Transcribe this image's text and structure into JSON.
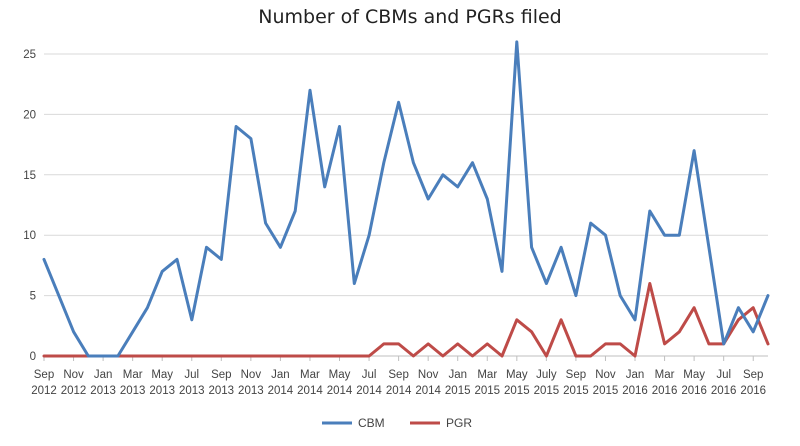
{
  "chart_data": {
    "type": "line",
    "title": "Number of CBMs and PGRs filed",
    "xlabel": "",
    "ylabel": "",
    "ylim": [
      0,
      25
    ],
    "yticks": [
      "0",
      "5",
      "10",
      "15",
      "20",
      "25"
    ],
    "grid": true,
    "legend_position": "bottom",
    "x": [
      "Sep 2012",
      "Oct 2012",
      "Nov 2012",
      "Dec 2012",
      "Jan 2013",
      "Feb 2013",
      "Mar 2013",
      "Apr 2013",
      "May 2013",
      "Jun 2013",
      "Jul 2013",
      "Aug 2013",
      "Sep 2013",
      "Oct 2013",
      "Nov 2013",
      "Dec 2013",
      "Jan 2014",
      "Feb 2014",
      "Mar 2014",
      "Apr 2014",
      "May 2014",
      "Jun 2014",
      "Jul 2014",
      "Aug 2014",
      "Sep 2014",
      "Oct 2014",
      "Nov 2014",
      "Dec 2014",
      "Jan 2015",
      "Feb 2015",
      "Mar 2015",
      "Apr 2015",
      "May 2015",
      "Jun 2015",
      "Jul 2015",
      "Aug 2015",
      "Sep 2015",
      "Oct 2015",
      "Nov 2015",
      "Dec 2015",
      "Jan 2016",
      "Feb 2016",
      "Mar 2016",
      "Apr 2016",
      "May 2016",
      "Jun 2016",
      "Jul 2016",
      "Aug 2016",
      "Sep 2016",
      "Oct 2016"
    ],
    "x_tick_labels": [
      [
        "Sep",
        "2012"
      ],
      [
        "Nov",
        "2012"
      ],
      [
        "Jan",
        "2013"
      ],
      [
        "Mar",
        "2013"
      ],
      [
        "May",
        "2013"
      ],
      [
        "Jul",
        "2013"
      ],
      [
        "Sep",
        "2013"
      ],
      [
        "Nov",
        "2013"
      ],
      [
        "Jan",
        "2014"
      ],
      [
        "Mar",
        "2014"
      ],
      [
        "May",
        "2014"
      ],
      [
        "Jul",
        "2014"
      ],
      [
        "Sep",
        "2014"
      ],
      [
        "Nov",
        "2014"
      ],
      [
        "Jan",
        "2015"
      ],
      [
        "Mar",
        "2015"
      ],
      [
        "May",
        "2015"
      ],
      [
        "July",
        "2015"
      ],
      [
        "Sep",
        "2015"
      ],
      [
        "Nov",
        "2015"
      ],
      [
        "Jan",
        "2016"
      ],
      [
        "Mar",
        "2016"
      ],
      [
        "May",
        "2016"
      ],
      [
        "Jul",
        "2016"
      ],
      [
        "Sep",
        "2016"
      ]
    ],
    "series": [
      {
        "name": "CBM",
        "color": "#4a7ebb",
        "values": [
          8,
          5,
          2,
          0,
          0,
          0,
          2,
          4,
          7,
          8,
          3,
          9,
          8,
          19,
          18,
          11,
          9,
          12,
          22,
          14,
          19,
          6,
          10,
          16,
          21,
          16,
          13,
          15,
          14,
          16,
          13,
          7,
          26,
          9,
          6,
          9,
          5,
          11,
          10,
          5,
          3,
          12,
          10,
          10,
          17,
          9,
          1,
          4,
          2,
          5
        ]
      },
      {
        "name": "PGR",
        "color": "#be4b48",
        "values": [
          0,
          0,
          0,
          0,
          0,
          0,
          0,
          0,
          0,
          0,
          0,
          0,
          0,
          0,
          0,
          0,
          0,
          0,
          0,
          0,
          0,
          0,
          0,
          1,
          1,
          0,
          1,
          0,
          1,
          0,
          1,
          0,
          3,
          2,
          0,
          3,
          0,
          0,
          1,
          1,
          0,
          6,
          1,
          2,
          4,
          1,
          1,
          3,
          4,
          1
        ]
      }
    ]
  }
}
